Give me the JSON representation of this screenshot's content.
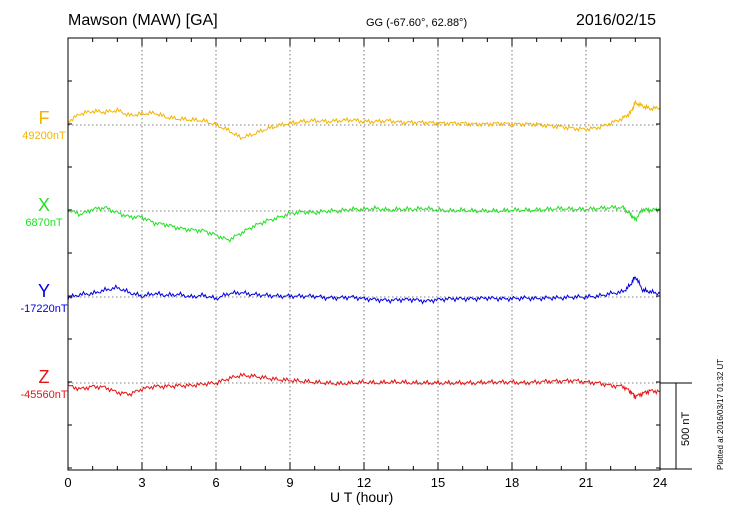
{
  "header": {
    "title": "Mawson (MAW)  [GA]",
    "coordinates": "GG (-67.60°,  62.88°)",
    "date": "2016/02/15"
  },
  "footer": {
    "plotted_note": "Plotted at 2016/03/17 01:32 UT"
  },
  "colors": {
    "F": "#f5b400",
    "X": "#22e022",
    "Y": "#0000e6",
    "Z": "#e61414"
  },
  "chart_data": {
    "type": "line",
    "title": "Mawson (MAW)  [GA]",
    "xlabel": "U T (hour)",
    "ylabel": "",
    "xlim": [
      0,
      24
    ],
    "xticks": [
      0,
      3,
      6,
      9,
      12,
      15,
      18,
      21,
      24
    ],
    "grid": true,
    "scale_bar": {
      "value": 500,
      "label": "500 nT"
    },
    "y_units_per_trace_nT": 850,
    "series": [
      {
        "name": "F",
        "baseline_label": "49200nT",
        "baseline": 49200,
        "x": [
          0,
          0.5,
          1,
          1.5,
          2,
          2.5,
          3,
          3.5,
          4,
          4.5,
          5,
          5.5,
          6,
          6.5,
          7,
          7.5,
          8,
          8.5,
          9,
          9.5,
          10,
          10.5,
          11,
          11.5,
          12,
          12.5,
          13,
          13.5,
          14,
          14.5,
          15,
          15.5,
          16,
          16.5,
          17,
          17.5,
          18,
          18.5,
          19,
          19.5,
          20,
          20.5,
          21,
          21.5,
          22,
          22.5,
          22.8,
          23,
          23.3,
          23.6,
          24
        ],
        "values": [
          49220,
          49265,
          49280,
          49275,
          49285,
          49255,
          49265,
          49270,
          49245,
          49235,
          49230,
          49225,
          49200,
          49170,
          49125,
          49145,
          49175,
          49195,
          49210,
          49220,
          49225,
          49220,
          49225,
          49230,
          49220,
          49220,
          49225,
          49215,
          49215,
          49215,
          49210,
          49210,
          49210,
          49205,
          49205,
          49210,
          49205,
          49205,
          49205,
          49195,
          49190,
          49180,
          49175,
          49185,
          49210,
          49240,
          49270,
          49330,
          49310,
          49295,
          49300
        ]
      },
      {
        "name": "X",
        "baseline_label": "6870nT",
        "baseline": 6870,
        "x": [
          0,
          0.5,
          1,
          1.5,
          2,
          2.5,
          3,
          3.5,
          4,
          4.5,
          5,
          5.5,
          6,
          6.5,
          7,
          7.5,
          8,
          8.5,
          9,
          9.5,
          10,
          10.5,
          11,
          11.5,
          12,
          12.5,
          13,
          13.5,
          14,
          14.5,
          15,
          15.5,
          16,
          16.5,
          17,
          17.5,
          18,
          18.5,
          19,
          19.5,
          20,
          20.5,
          21,
          21.5,
          22,
          22.5,
          22.8,
          23,
          23.3,
          23.6,
          24
        ],
        "values": [
          6875,
          6850,
          6880,
          6890,
          6860,
          6835,
          6835,
          6800,
          6790,
          6770,
          6760,
          6755,
          6730,
          6700,
          6740,
          6780,
          6810,
          6830,
          6855,
          6865,
          6860,
          6870,
          6870,
          6880,
          6880,
          6885,
          6875,
          6880,
          6880,
          6885,
          6875,
          6870,
          6875,
          6870,
          6870,
          6870,
          6875,
          6875,
          6875,
          6880,
          6885,
          6880,
          6880,
          6885,
          6890,
          6890,
          6850,
          6820,
          6880,
          6875,
          6880
        ]
      },
      {
        "name": "Y",
        "baseline_label": "-17220nT",
        "baseline": -17220,
        "x": [
          0,
          0.5,
          1,
          1.5,
          2,
          2.5,
          3,
          3.5,
          4,
          4.5,
          5,
          5.5,
          6,
          6.5,
          7,
          7.5,
          8,
          8.5,
          9,
          9.5,
          10,
          10.5,
          11,
          11.5,
          12,
          12.5,
          13,
          13.5,
          14,
          14.5,
          15,
          15.5,
          16,
          16.5,
          17,
          17.5,
          18,
          18.5,
          19,
          19.5,
          20,
          20.5,
          21,
          21.5,
          22,
          22.5,
          22.8,
          23,
          23.3,
          23.6,
          24
        ],
        "values": [
          -17225,
          -17205,
          -17200,
          -17180,
          -17165,
          -17195,
          -17215,
          -17200,
          -17210,
          -17205,
          -17220,
          -17210,
          -17230,
          -17200,
          -17195,
          -17205,
          -17210,
          -17215,
          -17215,
          -17215,
          -17215,
          -17225,
          -17225,
          -17220,
          -17230,
          -17235,
          -17240,
          -17235,
          -17235,
          -17245,
          -17235,
          -17230,
          -17230,
          -17230,
          -17225,
          -17230,
          -17230,
          -17225,
          -17230,
          -17225,
          -17225,
          -17220,
          -17220,
          -17215,
          -17200,
          -17190,
          -17150,
          -17100,
          -17180,
          -17190,
          -17200
        ]
      },
      {
        "name": "Z",
        "baseline_label": "-45560nT",
        "baseline": -45560,
        "x": [
          0,
          0.5,
          1,
          1.5,
          2,
          2.5,
          3,
          3.5,
          4,
          4.5,
          5,
          5.5,
          6,
          6.5,
          7,
          7.5,
          8,
          8.5,
          9,
          9.5,
          10,
          10.5,
          11,
          11.5,
          12,
          12.5,
          13,
          13.5,
          14,
          14.5,
          15,
          15.5,
          16,
          16.5,
          17,
          17.5,
          18,
          18.5,
          19,
          19.5,
          20,
          20.5,
          21,
          21.5,
          22,
          22.5,
          22.8,
          23,
          23.3,
          23.6,
          24
        ],
        "values": [
          -45575,
          -45595,
          -45580,
          -45585,
          -45615,
          -45625,
          -45595,
          -45580,
          -45580,
          -45575,
          -45575,
          -45565,
          -45560,
          -45535,
          -45515,
          -45520,
          -45530,
          -45540,
          -45545,
          -45550,
          -45555,
          -45560,
          -45565,
          -45560,
          -45555,
          -45560,
          -45555,
          -45555,
          -45560,
          -45560,
          -45560,
          -45560,
          -45560,
          -45560,
          -45555,
          -45555,
          -45555,
          -45560,
          -45555,
          -45550,
          -45550,
          -45545,
          -45555,
          -45560,
          -45575,
          -45580,
          -45610,
          -45640,
          -45620,
          -45605,
          -45610
        ]
      }
    ]
  }
}
